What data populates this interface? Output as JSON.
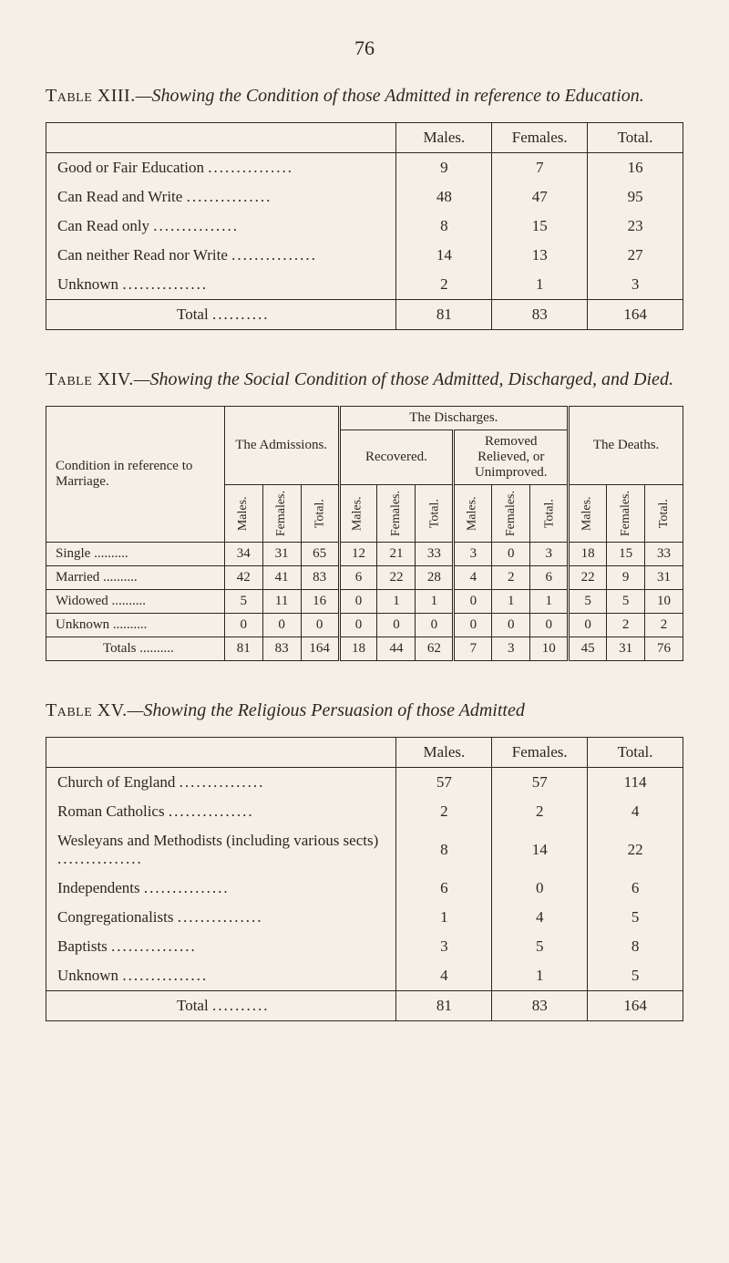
{
  "page_number": "76",
  "table13": {
    "title_prefix": "Table XIII.",
    "title_rest": "—Showing the Condition of those Admitted in reference to Education.",
    "columns": [
      "Males.",
      "Females.",
      "Total."
    ],
    "rows": [
      {
        "label": "Good or Fair Education",
        "values": [
          "9",
          "7",
          "16"
        ]
      },
      {
        "label": "Can Read and Write",
        "values": [
          "48",
          "47",
          "95"
        ]
      },
      {
        "label": "Can Read only",
        "values": [
          "8",
          "15",
          "23"
        ]
      },
      {
        "label": "Can neither Read nor Write",
        "values": [
          "14",
          "13",
          "27"
        ]
      },
      {
        "label": "Unknown",
        "values": [
          "2",
          "1",
          "3"
        ]
      }
    ],
    "total_label": "Total",
    "total_values": [
      "81",
      "83",
      "164"
    ]
  },
  "table14": {
    "title_prefix": "Table XIV.",
    "title_rest": "—Showing the Social Condition of those Admitted, Discharged, and Died.",
    "corner_label": "Condition in reference to Marriage.",
    "group_admissions": "The Admissions.",
    "group_discharges": "The Discharges.",
    "group_recovered": "Recovered.",
    "group_removed": "Removed Relieved, or Unimproved.",
    "group_deaths": "The Deaths.",
    "sub_labels": {
      "males": "Males.",
      "females": "Females.",
      "total": "Total."
    },
    "rows": [
      {
        "label": "Single",
        "v": [
          "34",
          "31",
          "65",
          "12",
          "21",
          "33",
          "3",
          "0",
          "3",
          "18",
          "15",
          "33"
        ]
      },
      {
        "label": "Married",
        "v": [
          "42",
          "41",
          "83",
          "6",
          "22",
          "28",
          "4",
          "2",
          "6",
          "22",
          "9",
          "31"
        ]
      },
      {
        "label": "Widowed",
        "v": [
          "5",
          "11",
          "16",
          "0",
          "1",
          "1",
          "0",
          "1",
          "1",
          "5",
          "5",
          "10"
        ]
      },
      {
        "label": "Unknown",
        "v": [
          "0",
          "0",
          "0",
          "0",
          "0",
          "0",
          "0",
          "0",
          "0",
          "0",
          "2",
          "2"
        ]
      }
    ],
    "totals_label": "Totals",
    "totals": [
      "81",
      "83",
      "164",
      "18",
      "44",
      "62",
      "7",
      "3",
      "10",
      "45",
      "31",
      "76"
    ]
  },
  "table15": {
    "title_prefix": "Table XV.",
    "title_rest": "—Showing the Religious Persuasion of those Admitted",
    "columns": [
      "Males.",
      "Females.",
      "Total."
    ],
    "rows": [
      {
        "label": "Church of England",
        "values": [
          "57",
          "57",
          "114"
        ]
      },
      {
        "label": "Roman Catholics",
        "values": [
          "2",
          "2",
          "4"
        ]
      },
      {
        "label": "Wesleyans and Methodists (including various sects)",
        "values": [
          "8",
          "14",
          "22"
        ]
      },
      {
        "label": "Independents",
        "values": [
          "6",
          "0",
          "6"
        ]
      },
      {
        "label": "Congregationalists",
        "values": [
          "1",
          "4",
          "5"
        ]
      },
      {
        "label": "Baptists",
        "values": [
          "3",
          "5",
          "8"
        ]
      },
      {
        "label": "Unknown",
        "values": [
          "4",
          "1",
          "5"
        ]
      }
    ],
    "total_label": "Total",
    "total_values": [
      "81",
      "83",
      "164"
    ]
  },
  "style": {
    "bg": "#f5f0e6",
    "text": "#2b2720",
    "border": "#2b2720",
    "body_font": "Times New Roman, Georgia, serif",
    "title_fontsize": 20,
    "body_fontsize": 17,
    "complex_fontsize": 15
  }
}
